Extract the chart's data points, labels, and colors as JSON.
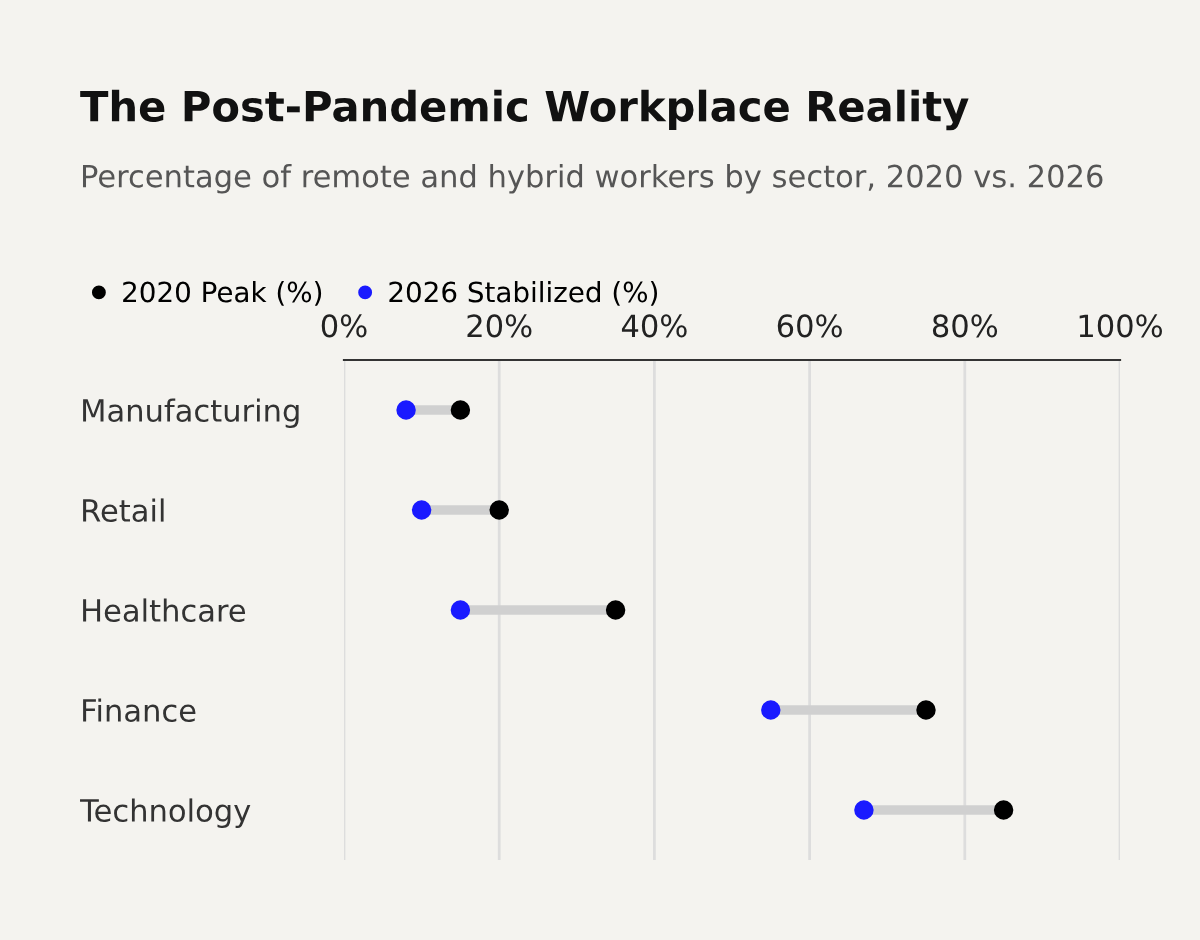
{
  "chart_data": {
    "type": "scatter",
    "orientation": "horizontal",
    "title": "The Post-Pandemic Workplace Reality",
    "subtitle": "Percentage of remote and hybrid workers by sector, 2020 vs. 2026",
    "categories": [
      "Manufacturing",
      "Retail",
      "Healthcare",
      "Finance",
      "Technology"
    ],
    "series": [
      {
        "name": "2020 Peak (%)",
        "color": "#000000",
        "values": [
          15,
          20,
          35,
          75,
          85
        ]
      },
      {
        "name": "2026 Stabilized (%)",
        "color": "#1a1aff",
        "values": [
          8,
          10,
          15,
          55,
          67
        ]
      }
    ],
    "xlim": [
      0,
      100
    ],
    "xticks": [
      {
        "value": 0,
        "label": "0%"
      },
      {
        "value": 20,
        "label": "20%"
      },
      {
        "value": 40,
        "label": "40%"
      },
      {
        "value": 60,
        "label": "60%"
      },
      {
        "value": 80,
        "label": "80%"
      },
      {
        "value": 100,
        "label": "100%"
      }
    ],
    "grid": "x",
    "legend": "top left",
    "marker": "circle"
  }
}
